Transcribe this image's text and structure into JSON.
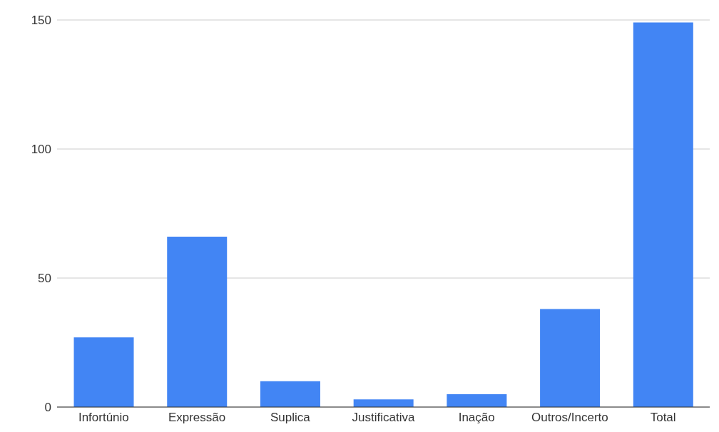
{
  "chart_data": {
    "type": "bar",
    "categories": [
      "Infortúnio",
      "Expressão",
      "Suplica",
      "Justificativa",
      "Inação",
      "Outros/Incerto",
      "Total"
    ],
    "values": [
      27,
      66,
      10,
      3,
      5,
      38,
      149
    ],
    "color": "#4285f4",
    "ylim": [
      0,
      150
    ],
    "yticks": [
      0,
      50,
      100,
      150
    ],
    "grid": "y"
  }
}
